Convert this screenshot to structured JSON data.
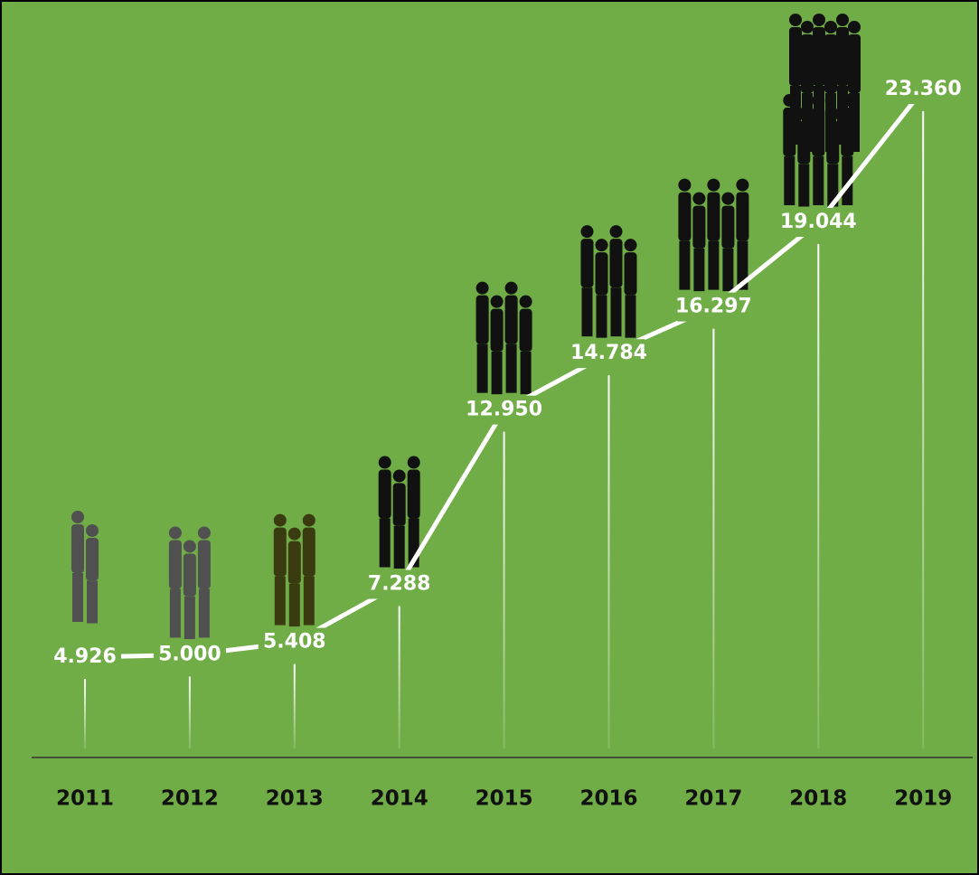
{
  "chart_data": {
    "type": "line",
    "categories": [
      "2011",
      "2012",
      "2013",
      "2014",
      "2015",
      "2016",
      "2017",
      "2018",
      "2019"
    ],
    "values": [
      4926,
      5000,
      5408,
      7288,
      12950,
      14784,
      16297,
      19044,
      23360
    ],
    "value_labels": [
      "4.926",
      "5.000",
      "5.408",
      "7.288",
      "12.950",
      "14.784",
      "16.297",
      "19.044",
      "23.360"
    ],
    "color": "#ffffff",
    "background": "#70ad47"
  }
}
